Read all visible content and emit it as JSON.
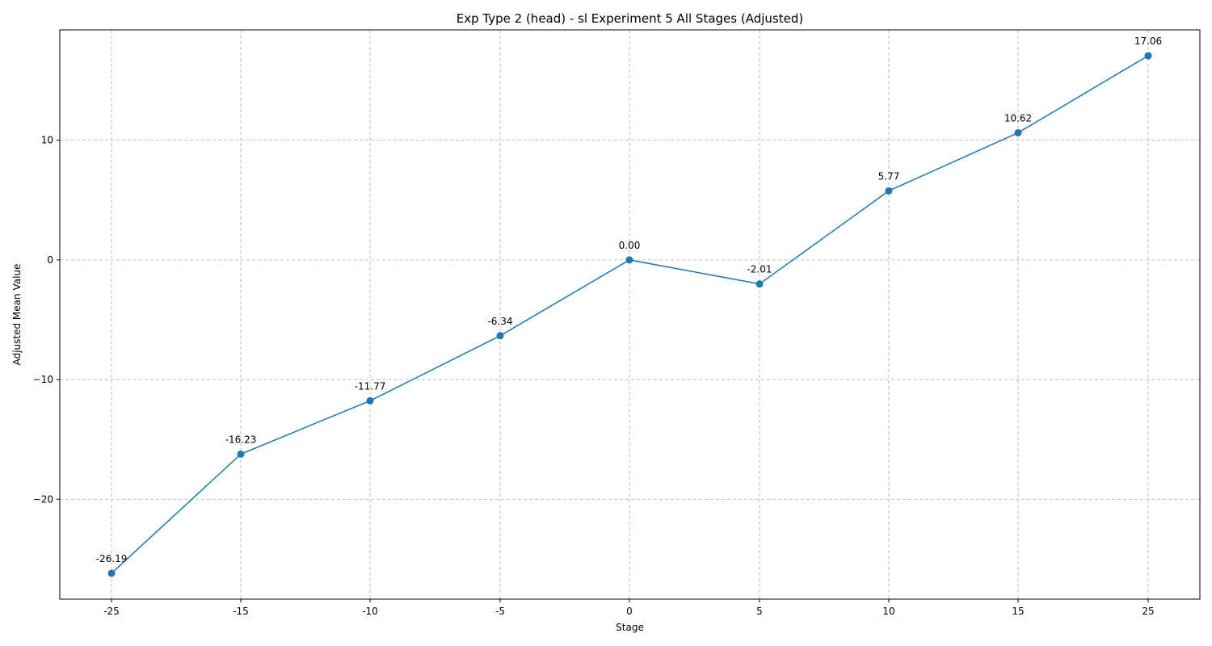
{
  "chart_data": {
    "type": "line",
    "title": "Exp Type 2 (head) - sl Experiment 5 All Stages (Adjusted)",
    "xlabel": "Stage",
    "ylabel": "Adjusted Mean Value",
    "categories": [
      "-25",
      "-15",
      "-10",
      "-5",
      "0",
      "5",
      "10",
      "15",
      "25"
    ],
    "series": [
      {
        "values": [
          -26.19,
          -16.23,
          -11.77,
          -6.34,
          0.0,
          -2.01,
          5.77,
          10.62,
          17.06
        ],
        "labels": [
          "-26.19",
          "-16.23",
          "-11.77",
          "-6.34",
          "0.00",
          "-2.01",
          "5.77",
          "10.62",
          "17.06"
        ],
        "color": "#1f77b4",
        "marker": "circle"
      }
    ],
    "yticks": [
      -20,
      -10,
      0,
      10
    ],
    "ytick_labels": [
      "−20",
      "−10",
      "0",
      "10"
    ],
    "ylim": [
      -28.35,
      19.22
    ],
    "grid": true
  }
}
